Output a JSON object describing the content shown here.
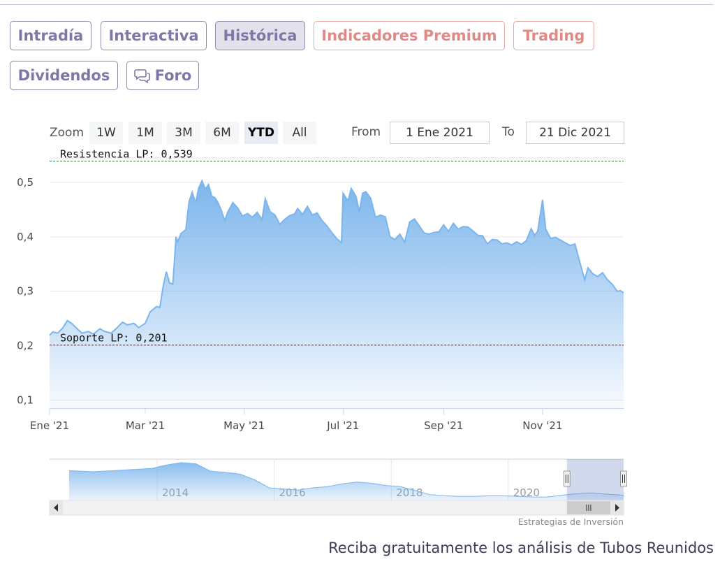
{
  "tabs": [
    {
      "label": "Intradía",
      "active": false,
      "premium": false
    },
    {
      "label": "Interactiva",
      "active": false,
      "premium": false
    },
    {
      "label": "Histórica",
      "active": true,
      "premium": false
    },
    {
      "label": "Indicadores Premium",
      "active": false,
      "premium": true
    },
    {
      "label": "Trading",
      "active": false,
      "premium": true
    },
    {
      "label": "Dividendos",
      "active": false,
      "premium": false
    },
    {
      "label": "Foro",
      "active": false,
      "premium": false,
      "icon": "chat-bubbles-icon"
    }
  ],
  "range_selector": {
    "zoom_label": "Zoom",
    "buttons": [
      "1W",
      "1M",
      "3M",
      "6M",
      "YTD",
      "All"
    ],
    "selected": "YTD",
    "from_label": "From",
    "from_value": "1 Ene 2021",
    "to_label": "To",
    "to_value": "21 Dic 2021"
  },
  "chart_data": {
    "type": "area",
    "title": "",
    "xlabel": "",
    "ylabel": "",
    "x_ticks": [
      "Ene '21",
      "Mar '21",
      "May '21",
      "Jul '21",
      "Sep '21",
      "Nov '21"
    ],
    "y_ticks": [
      "0,1",
      "0,2",
      "0,3",
      "0,4",
      "0,5"
    ],
    "ylim": [
      0.085,
      0.545
    ],
    "grid": true,
    "lines": [
      {
        "label": "Resistencia LP: 0,539",
        "value": 0.539,
        "color": "#2e7d32",
        "style": "dashed"
      },
      {
        "label": "Soporte LP: 0,201",
        "value": 0.201,
        "color": "#b71c1c",
        "style": "dashed"
      }
    ],
    "series": [
      {
        "color": "#7cb5ec",
        "points": [
          [
            "2021-01-01",
            0.219
          ],
          [
            "2021-01-03",
            0.225
          ],
          [
            "2021-01-06",
            0.223
          ],
          [
            "2021-01-09",
            0.232
          ],
          [
            "2021-01-12",
            0.246
          ],
          [
            "2021-01-15",
            0.24
          ],
          [
            "2021-01-18",
            0.231
          ],
          [
            "2021-01-21",
            0.223
          ],
          [
            "2021-01-25",
            0.226
          ],
          [
            "2021-01-28",
            0.221
          ],
          [
            "2021-02-01",
            0.231
          ],
          [
            "2021-02-04",
            0.226
          ],
          [
            "2021-02-08",
            0.223
          ],
          [
            "2021-02-11",
            0.231
          ],
          [
            "2021-02-15",
            0.243
          ],
          [
            "2021-02-18",
            0.238
          ],
          [
            "2021-02-22",
            0.241
          ],
          [
            "2021-02-25",
            0.233
          ],
          [
            "2021-03-01",
            0.241
          ],
          [
            "2021-03-04",
            0.262
          ],
          [
            "2021-03-08",
            0.272
          ],
          [
            "2021-03-10",
            0.27
          ],
          [
            "2021-03-12",
            0.308
          ],
          [
            "2021-03-14",
            0.336
          ],
          [
            "2021-03-16",
            0.315
          ],
          [
            "2021-03-18",
            0.313
          ],
          [
            "2021-03-20",
            0.4
          ],
          [
            "2021-03-21",
            0.391
          ],
          [
            "2021-03-23",
            0.406
          ],
          [
            "2021-03-26",
            0.413
          ],
          [
            "2021-03-28",
            0.465
          ],
          [
            "2021-03-30",
            0.482
          ],
          [
            "2021-04-01",
            0.462
          ],
          [
            "2021-04-03",
            0.49
          ],
          [
            "2021-04-05",
            0.503
          ],
          [
            "2021-04-07",
            0.488
          ],
          [
            "2021-04-09",
            0.496
          ],
          [
            "2021-04-11",
            0.475
          ],
          [
            "2021-04-13",
            0.472
          ],
          [
            "2021-04-15",
            0.462
          ],
          [
            "2021-04-17",
            0.448
          ],
          [
            "2021-04-19",
            0.43
          ],
          [
            "2021-04-21",
            0.446
          ],
          [
            "2021-04-24",
            0.463
          ],
          [
            "2021-04-27",
            0.453
          ],
          [
            "2021-04-30",
            0.438
          ],
          [
            "2021-05-03",
            0.443
          ],
          [
            "2021-05-06",
            0.436
          ],
          [
            "2021-05-09",
            0.445
          ],
          [
            "2021-05-12",
            0.432
          ],
          [
            "2021-05-14",
            0.47
          ],
          [
            "2021-05-17",
            0.446
          ],
          [
            "2021-05-20",
            0.44
          ],
          [
            "2021-05-23",
            0.423
          ],
          [
            "2021-05-26",
            0.432
          ],
          [
            "2021-05-29",
            0.439
          ],
          [
            "2021-06-01",
            0.442
          ],
          [
            "2021-06-03",
            0.452
          ],
          [
            "2021-06-06",
            0.441
          ],
          [
            "2021-06-09",
            0.456
          ],
          [
            "2021-06-12",
            0.44
          ],
          [
            "2021-06-15",
            0.444
          ],
          [
            "2021-06-18",
            0.43
          ],
          [
            "2021-06-21",
            0.42
          ],
          [
            "2021-06-24",
            0.408
          ],
          [
            "2021-06-27",
            0.397
          ],
          [
            "2021-06-30",
            0.389
          ],
          [
            "2021-07-01",
            0.48
          ],
          [
            "2021-07-04",
            0.466
          ],
          [
            "2021-07-06",
            0.489
          ],
          [
            "2021-07-09",
            0.474
          ],
          [
            "2021-07-11",
            0.446
          ],
          [
            "2021-07-13",
            0.48
          ],
          [
            "2021-07-15",
            0.483
          ],
          [
            "2021-07-18",
            0.471
          ],
          [
            "2021-07-21",
            0.436
          ],
          [
            "2021-07-24",
            0.44
          ],
          [
            "2021-07-27",
            0.437
          ],
          [
            "2021-07-30",
            0.4
          ],
          [
            "2021-08-02",
            0.395
          ],
          [
            "2021-08-05",
            0.405
          ],
          [
            "2021-08-08",
            0.39
          ],
          [
            "2021-08-11",
            0.427
          ],
          [
            "2021-08-14",
            0.433
          ],
          [
            "2021-08-17",
            0.42
          ],
          [
            "2021-08-20",
            0.407
          ],
          [
            "2021-08-23",
            0.405
          ],
          [
            "2021-08-26",
            0.408
          ],
          [
            "2021-08-29",
            0.409
          ],
          [
            "2021-09-01",
            0.422
          ],
          [
            "2021-09-04",
            0.41
          ],
          [
            "2021-09-07",
            0.425
          ],
          [
            "2021-09-10",
            0.414
          ],
          [
            "2021-09-13",
            0.419
          ],
          [
            "2021-09-16",
            0.418
          ],
          [
            "2021-09-19",
            0.411
          ],
          [
            "2021-09-22",
            0.403
          ],
          [
            "2021-09-25",
            0.402
          ],
          [
            "2021-09-28",
            0.387
          ],
          [
            "2021-10-01",
            0.395
          ],
          [
            "2021-10-04",
            0.394
          ],
          [
            "2021-10-07",
            0.387
          ],
          [
            "2021-10-10",
            0.389
          ],
          [
            "2021-10-13",
            0.385
          ],
          [
            "2021-10-16",
            0.391
          ],
          [
            "2021-10-19",
            0.386
          ],
          [
            "2021-10-22",
            0.393
          ],
          [
            "2021-10-25",
            0.415
          ],
          [
            "2021-10-27",
            0.403
          ],
          [
            "2021-10-29",
            0.41
          ],
          [
            "2021-11-01",
            0.468
          ],
          [
            "2021-11-03",
            0.414
          ],
          [
            "2021-11-06",
            0.397
          ],
          [
            "2021-11-09",
            0.399
          ],
          [
            "2021-11-12",
            0.394
          ],
          [
            "2021-11-15",
            0.389
          ],
          [
            "2021-11-18",
            0.384
          ],
          [
            "2021-11-21",
            0.387
          ],
          [
            "2021-11-24",
            0.353
          ],
          [
            "2021-11-27",
            0.321
          ],
          [
            "2021-11-29",
            0.343
          ],
          [
            "2021-12-02",
            0.332
          ],
          [
            "2021-12-05",
            0.327
          ],
          [
            "2021-12-08",
            0.334
          ],
          [
            "2021-12-11",
            0.321
          ],
          [
            "2021-12-14",
            0.313
          ],
          [
            "2021-12-17",
            0.3
          ],
          [
            "2021-12-19",
            0.301
          ],
          [
            "2021-12-21",
            0.297
          ]
        ]
      }
    ],
    "navigator": {
      "x_ticks": [
        "2014",
        "2016",
        "2018",
        "2020"
      ],
      "series": [
        [
          "2012-07-01",
          0.52
        ],
        [
          "2012-12-01",
          0.5
        ],
        [
          "2013-06-01",
          0.53
        ],
        [
          "2013-12-01",
          0.56
        ],
        [
          "2014-03-01",
          0.62
        ],
        [
          "2014-06-01",
          0.66
        ],
        [
          "2014-09-01",
          0.64
        ],
        [
          "2014-12-01",
          0.51
        ],
        [
          "2015-03-01",
          0.49
        ],
        [
          "2015-06-01",
          0.46
        ],
        [
          "2015-09-01",
          0.36
        ],
        [
          "2015-12-01",
          0.22
        ],
        [
          "2016-03-01",
          0.2
        ],
        [
          "2016-06-01",
          0.18
        ],
        [
          "2016-09-01",
          0.22
        ],
        [
          "2016-12-01",
          0.24
        ],
        [
          "2017-03-01",
          0.29
        ],
        [
          "2017-06-01",
          0.32
        ],
        [
          "2017-09-01",
          0.3
        ],
        [
          "2017-12-01",
          0.26
        ],
        [
          "2018-03-01",
          0.24
        ],
        [
          "2018-06-01",
          0.17
        ],
        [
          "2018-09-01",
          0.1
        ],
        [
          "2018-12-01",
          0.08
        ],
        [
          "2019-03-01",
          0.07
        ],
        [
          "2019-06-01",
          0.07
        ],
        [
          "2019-09-01",
          0.08
        ],
        [
          "2019-12-01",
          0.08
        ],
        [
          "2020-03-01",
          0.07
        ],
        [
          "2020-06-01",
          0.06
        ],
        [
          "2020-09-01",
          0.06
        ],
        [
          "2020-12-01",
          0.09
        ],
        [
          "2021-03-01",
          0.12
        ],
        [
          "2021-06-01",
          0.13
        ],
        [
          "2021-09-01",
          0.11
        ],
        [
          "2021-12-21",
          0.09
        ]
      ]
    }
  },
  "credits": "Estrategias de Inversión",
  "footer": "Reciba gratuitamente los análisis de Tubos Reunidos"
}
